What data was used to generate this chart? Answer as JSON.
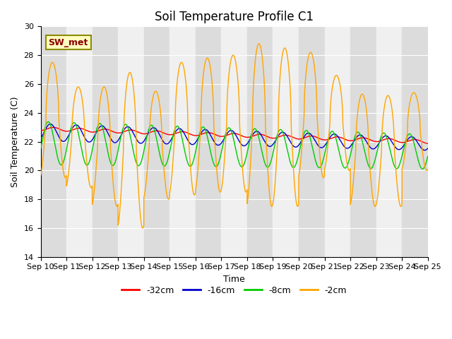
{
  "title": "Soil Temperature Profile C1",
  "xlabel": "Time",
  "ylabel": "Soil Temperature (C)",
  "ylim": [
    14,
    30
  ],
  "x_tick_labels": [
    "Sep 10",
    "Sep 11",
    "Sep 12",
    "Sep 13",
    "Sep 14",
    "Sep 15",
    "Sep 16",
    "Sep 17",
    "Sep 18",
    "Sep 19",
    "Sep 20",
    "Sep 21",
    "Sep 22",
    "Sep 23",
    "Sep 24",
    "Sep 25"
  ],
  "annotation_text": "SW_met",
  "annotation_color": "#8B0000",
  "annotation_bg": "#FFFFC0",
  "annotation_border": "#8B8B00",
  "legend_entries": [
    "-32cm",
    "-16cm",
    "-8cm",
    "-2cm"
  ],
  "line_colors": [
    "#FF0000",
    "#0000CC",
    "#00CC00",
    "#FFA500"
  ],
  "title_fontsize": 12,
  "label_fontsize": 9,
  "tick_fontsize": 8,
  "days": 15,
  "band_color_even": "#DCDCDC",
  "band_color_odd": "#F0F0F0",
  "facecolor": "#F0F0F0",
  "grid_color": "#FFFFFF"
}
